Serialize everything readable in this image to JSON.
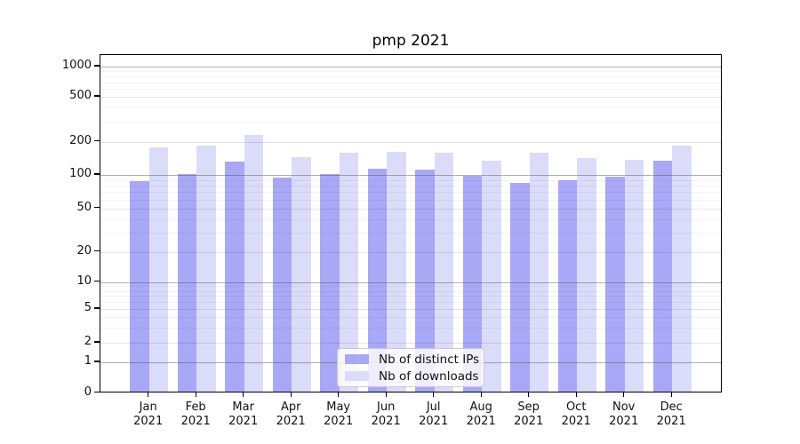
{
  "chart_data": {
    "type": "bar",
    "title": "pmp 2021",
    "categories": [
      "Jan 2021",
      "Feb 2021",
      "Mar 2021",
      "Apr 2021",
      "May 2021",
      "Jun 2021",
      "Jul 2021",
      "Aug 2021",
      "Sep 2021",
      "Oct 2021",
      "Nov 2021",
      "Dec 2021"
    ],
    "series": [
      {
        "name": "Nb of distinct IPs",
        "color": "#a8a8f6",
        "values": [
          85,
          100,
          128,
          92,
          100,
          110,
          108,
          96,
          82,
          87,
          94,
          130
        ]
      },
      {
        "name": "Nb of downloads",
        "color": "#dbdbfa",
        "values": [
          174,
          180,
          222,
          140,
          156,
          157,
          154,
          130,
          154,
          138,
          133,
          180
        ]
      }
    ],
    "xlabel": "",
    "ylabel": "",
    "yscale": "symlog",
    "y_ticks": [
      0,
      1,
      2,
      5,
      10,
      20,
      50,
      100,
      200,
      500,
      1000
    ],
    "ylim": [
      0,
      1300
    ],
    "grid": "both",
    "legend_position": "lower center",
    "colors": {
      "spine": "#000000",
      "grid_strong": "#8c8c8c",
      "grid_minor": "#e8e8e8",
      "background": "#ffffff"
    }
  }
}
